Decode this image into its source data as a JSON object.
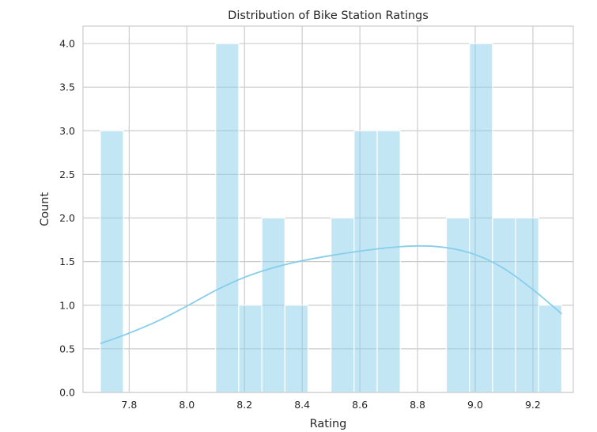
{
  "chart_data": {
    "type": "bar",
    "title": "Distribution of Bike Station Ratings",
    "xlabel": "Rating",
    "ylabel": "Count",
    "xlim": [
      7.64,
      9.34
    ],
    "ylim": [
      0,
      4.2
    ],
    "x_ticks": [
      7.8,
      8.0,
      8.2,
      8.4,
      8.6,
      8.8,
      9.0,
      9.2
    ],
    "x_tick_labels": [
      "7.8",
      "8.0",
      "8.2",
      "8.4",
      "8.6",
      "8.8",
      "9.0",
      "9.2"
    ],
    "y_ticks": [
      0,
      0.5,
      1.0,
      1.5,
      2.0,
      2.5,
      3.0,
      3.5,
      4.0
    ],
    "y_tick_labels": [
      "0.0",
      "0.5",
      "1.0",
      "1.5",
      "2.0",
      "2.5",
      "3.0",
      "3.5",
      "4.0"
    ],
    "grid": true,
    "bar_color": "#87ceeb",
    "bins": [
      {
        "start": 7.7,
        "end": 7.78,
        "count": 3
      },
      {
        "start": 7.78,
        "end": 7.86,
        "count": 0
      },
      {
        "start": 7.86,
        "end": 7.94,
        "count": 0
      },
      {
        "start": 7.94,
        "end": 8.02,
        "count": 0
      },
      {
        "start": 8.02,
        "end": 8.1,
        "count": 0
      },
      {
        "start": 8.1,
        "end": 8.18,
        "count": 4
      },
      {
        "start": 8.18,
        "end": 8.26,
        "count": 1
      },
      {
        "start": 8.26,
        "end": 8.34,
        "count": 2
      },
      {
        "start": 8.34,
        "end": 8.42,
        "count": 1
      },
      {
        "start": 8.42,
        "end": 8.5,
        "count": 0
      },
      {
        "start": 8.5,
        "end": 8.58,
        "count": 2
      },
      {
        "start": 8.58,
        "end": 8.66,
        "count": 3
      },
      {
        "start": 8.66,
        "end": 8.74,
        "count": 3
      },
      {
        "start": 8.74,
        "end": 8.82,
        "count": 0
      },
      {
        "start": 8.82,
        "end": 8.9,
        "count": 0
      },
      {
        "start": 8.9,
        "end": 8.98,
        "count": 2
      },
      {
        "start": 8.98,
        "end": 9.06,
        "count": 4
      },
      {
        "start": 9.06,
        "end": 9.14,
        "count": 2
      },
      {
        "start": 9.14,
        "end": 9.22,
        "count": 2
      },
      {
        "start": 9.22,
        "end": 9.3,
        "count": 1
      }
    ],
    "kde": {
      "color": "#87ceeb",
      "x": [
        7.7,
        7.8,
        7.9,
        8.0,
        8.1,
        8.2,
        8.3,
        8.4,
        8.5,
        8.6,
        8.7,
        8.8,
        8.9,
        9.0,
        9.1,
        9.2,
        9.3
      ],
      "y": [
        0.56,
        0.68,
        0.82,
        0.99,
        1.17,
        1.32,
        1.43,
        1.51,
        1.57,
        1.62,
        1.66,
        1.68,
        1.66,
        1.58,
        1.42,
        1.18,
        0.9
      ]
    }
  }
}
